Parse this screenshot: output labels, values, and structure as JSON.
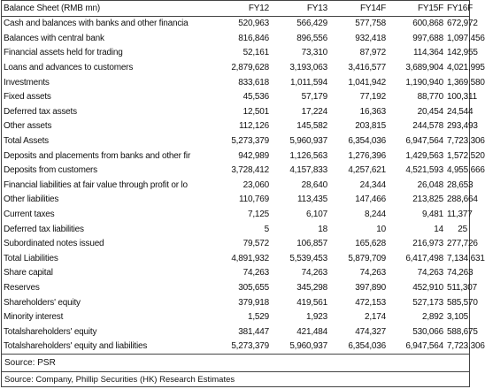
{
  "header": {
    "title": "Balance Sheet (RMB mn)",
    "columns": [
      "FY12",
      "FY13",
      "FY14F",
      "FY15F",
      "FY16F"
    ]
  },
  "table": {
    "rows": [
      [
        "Cash and balances with banks and other financia",
        "520,963",
        "566,429",
        "577,758",
        "600,868",
        "672,972"
      ],
      [
        "Balances with central bank",
        "816,846",
        "896,556",
        "932,418",
        "997,688",
        "1,097,456"
      ],
      [
        "Financial assets held for trading",
        "52,161",
        "73,310",
        "87,972",
        "114,364",
        "142,955"
      ],
      [
        "Loans and advances to customers",
        "2,879,628",
        "3,193,063",
        "3,416,577",
        "3,689,904",
        "4,021,995"
      ],
      [
        "Investments",
        "833,618",
        "1,011,594",
        "1,041,942",
        "1,190,940",
        "1,369,580"
      ],
      [
        "Fixed assets",
        "45,536",
        "57,179",
        "77,192",
        "88,770",
        "100,311"
      ],
      [
        "Deferred tax assets",
        "12,501",
        "17,224",
        "16,363",
        "20,454",
        "24,544"
      ],
      [
        "Other assets",
        "112,126",
        "145,582",
        "203,815",
        "244,578",
        "293,493"
      ],
      [
        "Total Assets",
        "5,273,379",
        "5,960,937",
        "6,354,036",
        "6,947,564",
        "7,723,306"
      ],
      [
        "Deposits and placements from banks and other fir",
        "942,989",
        "1,126,563",
        "1,276,396",
        "1,429,563",
        "1,572,520"
      ],
      [
        "Deposits from customers",
        "3,728,412",
        "4,157,833",
        "4,257,621",
        "4,521,593",
        "4,955,666"
      ],
      [
        "Financial liabilities at fair value  through profit or lo",
        "23,060",
        "28,640",
        "24,344",
        "26,048",
        "28,653"
      ],
      [
        "Other liabilities",
        "110,769",
        "113,435",
        "147,466",
        "213,825",
        "288,664"
      ],
      [
        "Current taxes",
        "7,125",
        "6,107",
        "8,244",
        "9,481",
        "11,377"
      ],
      [
        "Deferred tax liabilities",
        "5",
        "18",
        "10",
        "14",
        "25"
      ],
      [
        "Subordinated notes issued",
        "79,572",
        "106,857",
        "165,628",
        "216,973",
        "277,726"
      ],
      [
        "Total Liabilities",
        "4,891,932",
        "5,539,453",
        "5,879,709",
        "6,417,498",
        "7,134,631"
      ],
      [
        "Share capital",
        "74,263",
        "74,263",
        "74,263",
        "74,263",
        "74,263"
      ],
      [
        "Reserves",
        "305,655",
        "345,298",
        "397,890",
        "452,910",
        "511,307"
      ],
      [
        "Shareholders' equity",
        "379,918",
        "419,561",
        "472,153",
        "527,173",
        "585,570"
      ],
      [
        "Minority interest",
        "1,529",
        "1,923",
        "2,174",
        "2,892",
        "3,105"
      ],
      [
        "Totalshareholders' equity",
        "381,447",
        "421,484",
        "474,327",
        "530,066",
        "588,675"
      ],
      [
        "Totalshareholders' equity and liabilities",
        "5,273,379",
        "5,960,937",
        "6,354,036",
        "6,947,564",
        "7,723,306"
      ]
    ]
  },
  "source": "Source: PSR",
  "footer": "Source: Company, Phillip Securities (HK) Research Estimates"
}
